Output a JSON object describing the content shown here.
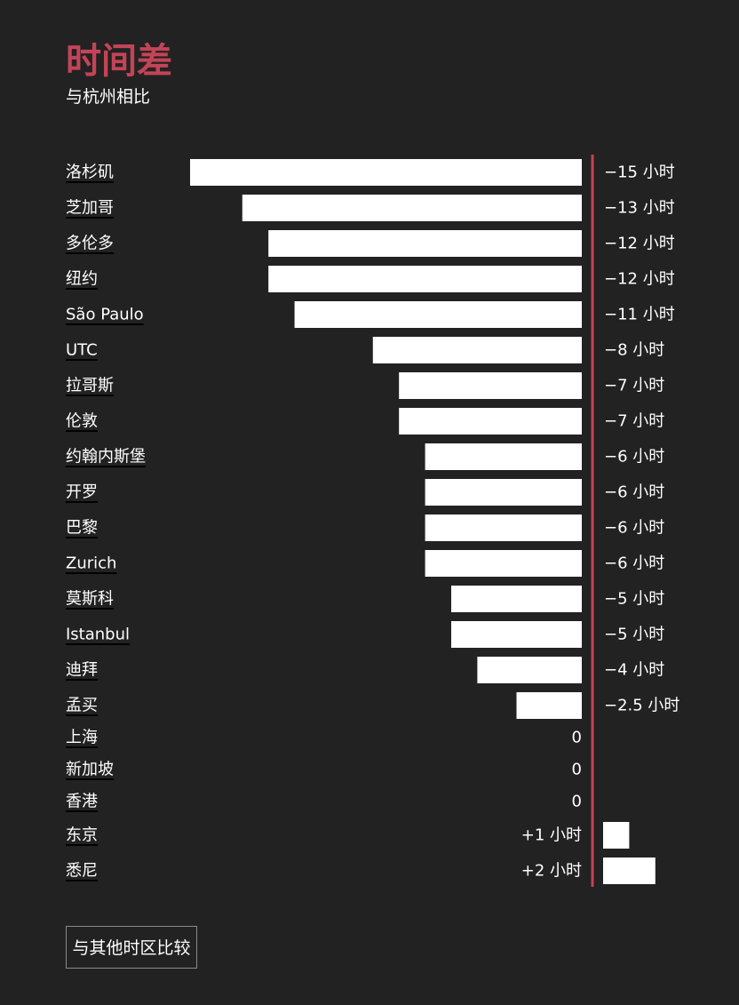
{
  "title": "时间差",
  "subtitle": "与杭州相比",
  "button_label": "与其他时区比较",
  "colors": {
    "background": "#222222",
    "bar": "#ffffff",
    "accent": "#c44457",
    "text": "#ffffff"
  },
  "chart_data": {
    "type": "bar",
    "orientation": "horizontal",
    "reference_line": 0,
    "xlim": [
      -15,
      2
    ],
    "categories": [
      "洛杉矶",
      "芝加哥",
      "多伦多",
      "纽约",
      "São Paulo",
      "UTC",
      "拉哥斯",
      "伦敦",
      "约翰内斯堡",
      "开罗",
      "巴黎",
      "Zurich",
      "莫斯科",
      "Istanbul",
      "迪拜",
      "孟买",
      "上海",
      "新加坡",
      "香港",
      "东京",
      "悉尼"
    ],
    "values": [
      -15,
      -13,
      -12,
      -12,
      -11,
      -8,
      -7,
      -7,
      -6,
      -6,
      -6,
      -6,
      -5,
      -5,
      -4,
      -2.5,
      0,
      0,
      0,
      1,
      2
    ],
    "labels": [
      "−15 小时",
      "−13 小时",
      "−12 小时",
      "−12 小时",
      "−11 小时",
      "−8 小时",
      "−7 小时",
      "−7 小时",
      "−6 小时",
      "−6 小时",
      "−6 小时",
      "−6 小时",
      "−5 小时",
      "−5 小时",
      "−4 小时",
      "−2.5 小时",
      "0",
      "0",
      "0",
      "+1 小时",
      "+2 小时"
    ]
  }
}
